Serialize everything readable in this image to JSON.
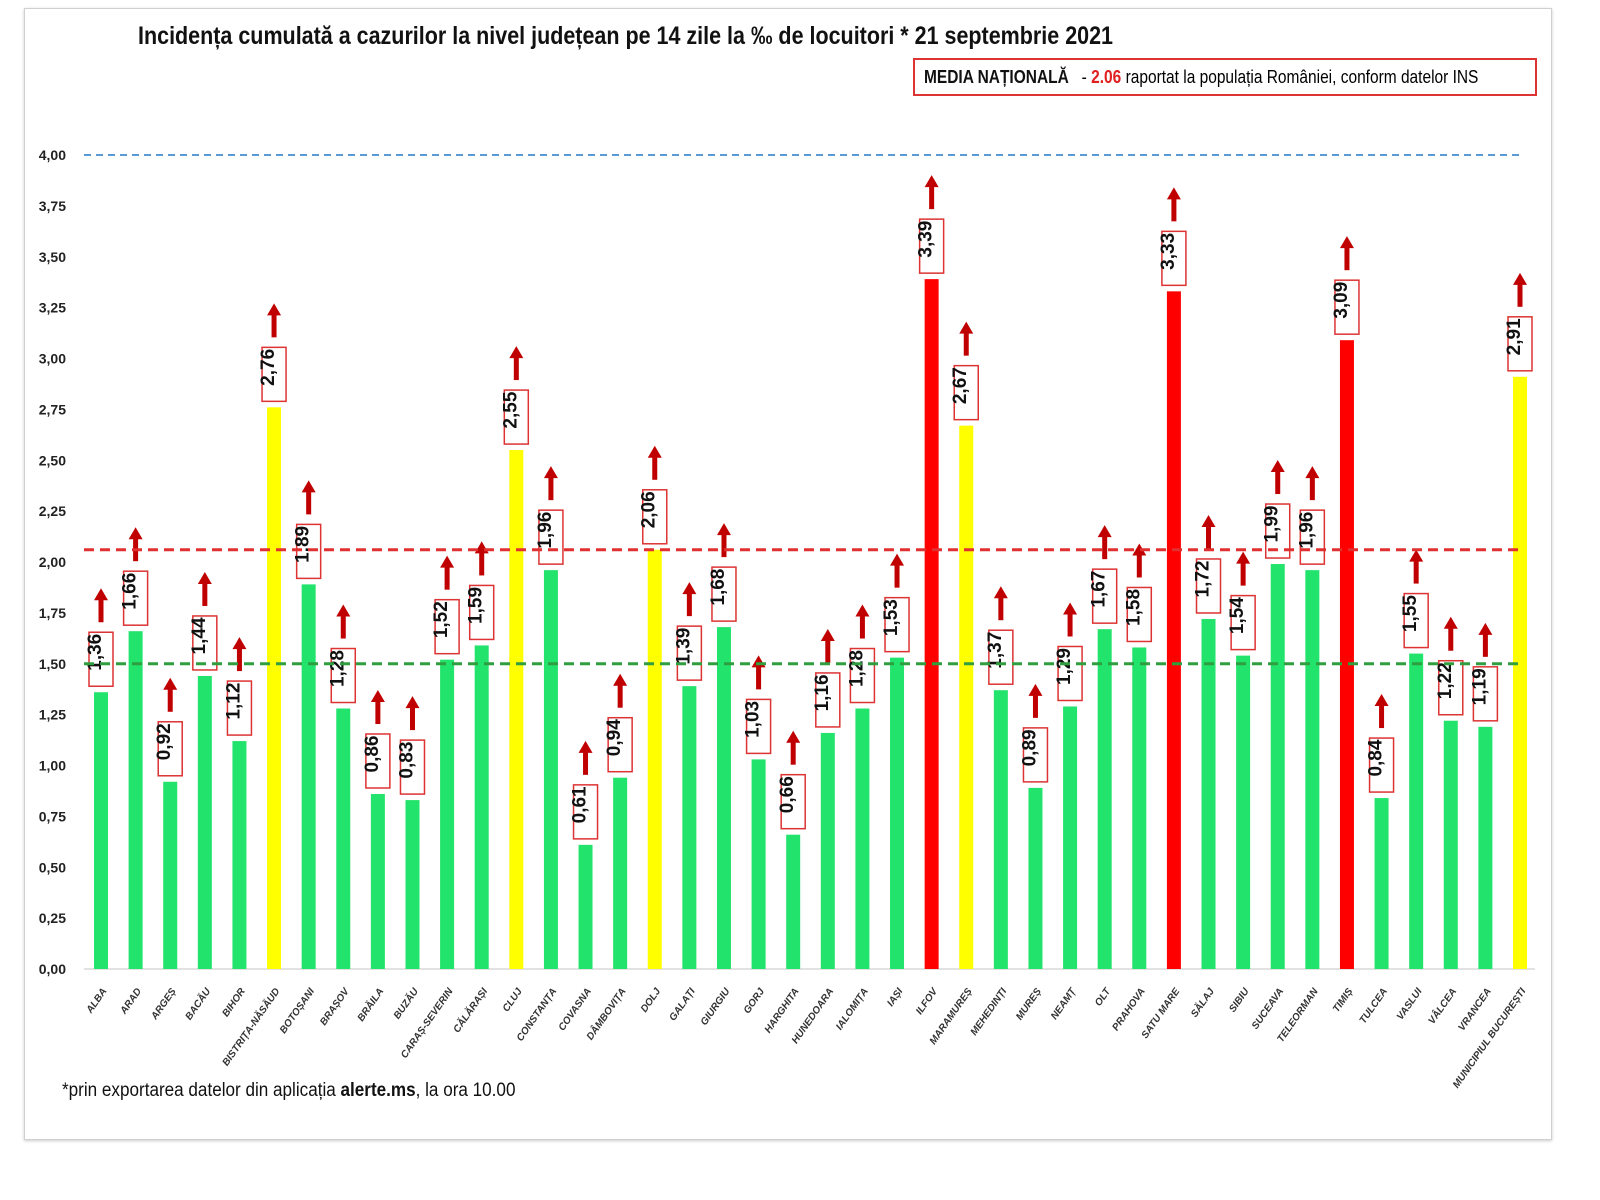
{
  "chart_data": {
    "type": "bar",
    "title": "Incidența cumulată a cazurilor la nivel județean pe 14 zile la ‰ de locuitori * 21 septembrie 2021",
    "annotation": {
      "label": "MEDIA NAȚIONALĂ",
      "separator": "-",
      "value": "2.06",
      "text": "raportat la populația României, conform datelor INS"
    },
    "footnote": {
      "pre": "*prin exportarea datelor din aplicația ",
      "bold": "alerte.ms",
      "post": ", la ora 10.00"
    },
    "xlabel": "",
    "ylabel": "",
    "ylim": [
      0,
      4
    ],
    "yticks": [
      "0,00",
      "0,25",
      "0,50",
      "0,75",
      "1,00",
      "1,25",
      "1,50",
      "1,75",
      "2,00",
      "2,25",
      "2,50",
      "2,75",
      "3,00",
      "3,25",
      "3,50",
      "3,75",
      "4,00"
    ],
    "grid": false,
    "reference_lines": [
      {
        "value": 4.0,
        "color": "#5b9bd5",
        "style": "dashed"
      },
      {
        "value": 2.06,
        "color": "#e03030",
        "style": "dashed"
      },
      {
        "value": 1.5,
        "color": "#2e9e3e",
        "style": "dashed"
      }
    ],
    "colors": {
      "green": "#22e36b",
      "yellow": "#ffff00",
      "red": "#ff0000",
      "arrow": "#c00000",
      "label_border": "#d33"
    },
    "categories": [
      "ALBA",
      "ARAD",
      "ARGEȘ",
      "BACĂU",
      "BIHOR",
      "BISTRIȚA-NĂSĂUD",
      "BOTOȘANI",
      "BRAȘOV",
      "BRĂILA",
      "BUZĂU",
      "CARAȘ-SEVERIN",
      "CĂLĂRAȘI",
      "CLUJ",
      "CONSTANȚA",
      "COVASNA",
      "DÂMBOVIȚA",
      "DOLJ",
      "GALAȚI",
      "GIURGIU",
      "GORJ",
      "HARGHITA",
      "HUNEDOARA",
      "IALOMIȚA",
      "IAȘI",
      "ILFOV",
      "MARAMUREȘ",
      "MEHEDINȚI",
      "MUREȘ",
      "NEAMȚ",
      "OLT",
      "PRAHOVA",
      "SATU MARE",
      "SĂLAJ",
      "SIBIU",
      "SUCEAVA",
      "TELEORMAN",
      "TIMIȘ",
      "TULCEA",
      "VASLUI",
      "VÂLCEA",
      "VRANCEA",
      "MUNICIPIUL BUCUREȘTI"
    ],
    "values": [
      1.36,
      1.66,
      0.92,
      1.44,
      1.12,
      2.76,
      1.89,
      1.28,
      0.86,
      0.83,
      1.52,
      1.59,
      2.55,
      1.96,
      0.61,
      0.94,
      2.06,
      1.39,
      1.68,
      1.03,
      0.66,
      1.16,
      1.28,
      1.53,
      3.39,
      2.67,
      1.37,
      0.89,
      1.29,
      1.67,
      1.58,
      3.33,
      1.72,
      1.54,
      1.99,
      1.96,
      3.09,
      0.84,
      1.55,
      1.22,
      1.19,
      2.91
    ],
    "data_labels": [
      "1,36",
      "1,66",
      "0,92",
      "1,44",
      "1,12",
      "2,76",
      "1,89",
      "1,28",
      "0,86",
      "0,83",
      "1,52",
      "1,59",
      "2,55",
      "1,96",
      "0,61",
      "0,94",
      "2,06",
      "1,39",
      "1,68",
      "1,03",
      "0,66",
      "1,16",
      "1,28",
      "1,53",
      "3,39",
      "2,67",
      "1,37",
      "0,89",
      "1,29",
      "1,67",
      "1,58",
      "3,33",
      "1,72",
      "1,54",
      "1,99",
      "1,96",
      "3,09",
      "0,84",
      "1,55",
      "1,22",
      "1,19",
      "2,91"
    ],
    "trend": "up"
  }
}
